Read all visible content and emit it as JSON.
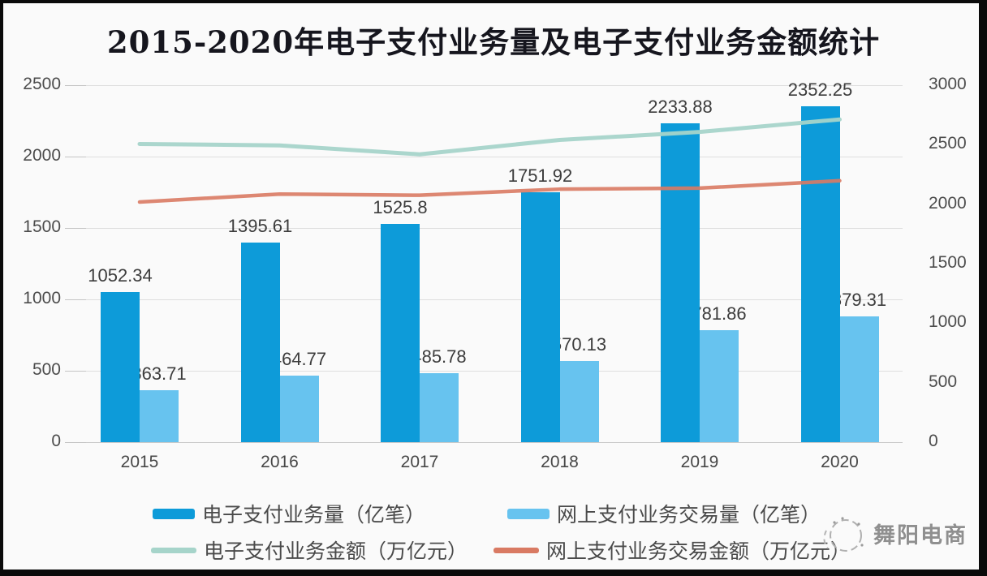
{
  "chart_data": {
    "type": "combo",
    "title": "2015-2020年电子支付业务量及电子支付业务金额统计",
    "categories": [
      "2015",
      "2016",
      "2017",
      "2018",
      "2019",
      "2020"
    ],
    "left_axis": {
      "ticks": [
        0,
        500,
        1000,
        1500,
        2000,
        2500
      ],
      "lim": [
        0,
        2500
      ]
    },
    "right_axis": {
      "ticks": [
        0,
        500,
        1000,
        1500,
        2000,
        2500,
        3000
      ],
      "lim": [
        0,
        3000
      ]
    },
    "grid": "horizontal",
    "legend_position": "bottom",
    "series": [
      {
        "name": "电子支付业务量（亿笔）",
        "type": "bar",
        "axis": "left",
        "color": "#0d9bd9",
        "values": [
          1052.34,
          1395.61,
          1525.8,
          1751.92,
          2233.88,
          2352.25
        ],
        "data_labels": true
      },
      {
        "name": "网上支付业务交易量（亿笔）",
        "type": "bar",
        "axis": "left",
        "color": "#67c3ef",
        "values": [
          363.71,
          464.77,
          485.78,
          570.13,
          781.86,
          879.31
        ],
        "data_labels": true
      },
      {
        "name": "电子支付业务金额（万亿元）",
        "type": "line",
        "axis": "right",
        "color": "#a6d4ca",
        "values": [
          2506,
          2494,
          2419,
          2540,
          2607,
          2712
        ],
        "data_labels": false
      },
      {
        "name": "网上支付业务交易金额（万亿元）",
        "type": "line",
        "axis": "right",
        "color": "#d97a63",
        "values": [
          2018,
          2085,
          2075,
          2126,
          2135,
          2197
        ],
        "data_labels": false
      }
    ]
  },
  "watermark": {
    "text": "舞阳电商"
  }
}
